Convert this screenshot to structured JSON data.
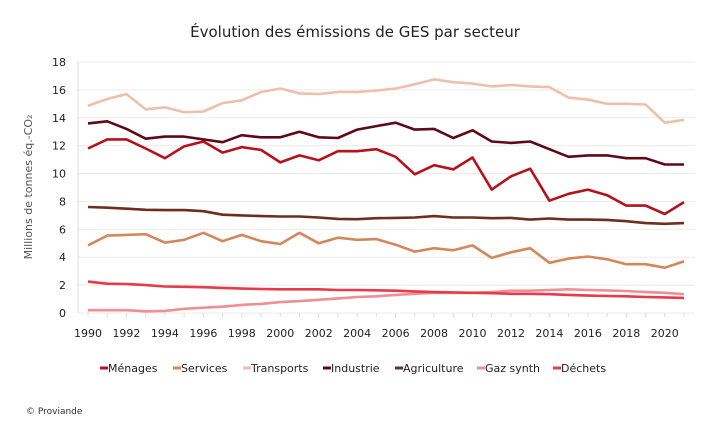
{
  "chart_data": {
    "type": "line",
    "title": "Évolution des émissions de GES par secteur",
    "ylabel": "Millions de tonnes éq.-CO₂",
    "xlabel": "",
    "ylim": [
      0,
      18
    ],
    "yticks": [
      0,
      2,
      4,
      6,
      8,
      10,
      12,
      14,
      16,
      18
    ],
    "xticks": [
      1990,
      1992,
      1994,
      1996,
      1998,
      2000,
      2002,
      2004,
      2006,
      2008,
      2010,
      2012,
      2014,
      2016,
      2018,
      2020
    ],
    "grid": true,
    "legend_position": "bottom",
    "x": [
      1990,
      1991,
      1992,
      1993,
      1994,
      1995,
      1996,
      1997,
      1998,
      1999,
      2000,
      2001,
      2002,
      2003,
      2004,
      2005,
      2006,
      2007,
      2008,
      2009,
      2010,
      2011,
      2012,
      2013,
      2014,
      2015,
      2016,
      2017,
      2018,
      2019,
      2020,
      2021
    ],
    "series": [
      {
        "name": "Ménages",
        "color": "#b5121b",
        "values": [
          11.8,
          12.45,
          12.45,
          11.8,
          11.1,
          11.95,
          12.3,
          11.5,
          11.9,
          11.7,
          10.8,
          11.3,
          10.95,
          11.6,
          11.6,
          11.75,
          11.2,
          9.95,
          10.6,
          10.3,
          11.15,
          8.85,
          9.8,
          10.35,
          8.05,
          8.55,
          8.85,
          8.45,
          7.7,
          7.7,
          7.1,
          7.95
        ]
      },
      {
        "name": "Services",
        "color": "#d4875a",
        "values": [
          4.85,
          5.55,
          5.6,
          5.65,
          5.05,
          5.25,
          5.75,
          5.15,
          5.6,
          5.15,
          4.95,
          5.75,
          5.0,
          5.4,
          5.25,
          5.3,
          4.9,
          4.4,
          4.65,
          4.5,
          4.85,
          3.95,
          4.35,
          4.65,
          3.6,
          3.9,
          4.05,
          3.85,
          3.5,
          3.5,
          3.25,
          3.7
        ]
      },
      {
        "name": "Transports",
        "color": "#eec0ac",
        "values": [
          14.85,
          15.35,
          15.7,
          14.6,
          14.75,
          14.4,
          14.45,
          15.05,
          15.25,
          15.85,
          16.1,
          15.75,
          15.7,
          15.85,
          15.85,
          15.95,
          16.1,
          16.4,
          16.75,
          16.55,
          16.45,
          16.25,
          16.35,
          16.25,
          16.2,
          15.45,
          15.3,
          15.0,
          15.0,
          14.95,
          13.65,
          13.85
        ]
      },
      {
        "name": "Industrie",
        "color": "#5e0a16",
        "values": [
          13.6,
          13.75,
          13.2,
          12.5,
          12.65,
          12.65,
          12.45,
          12.25,
          12.75,
          12.6,
          12.6,
          13.0,
          12.6,
          12.55,
          13.15,
          13.4,
          13.65,
          13.15,
          13.2,
          12.55,
          13.1,
          12.3,
          12.2,
          12.3,
          11.75,
          11.2,
          11.3,
          11.3,
          11.1,
          11.1,
          10.65,
          10.65
        ]
      },
      {
        "name": "Agriculture",
        "color": "#6e2e1d",
        "values": [
          7.6,
          7.55,
          7.48,
          7.4,
          7.38,
          7.38,
          7.3,
          7.05,
          7.0,
          6.95,
          6.92,
          6.92,
          6.85,
          6.75,
          6.73,
          6.8,
          6.82,
          6.85,
          6.95,
          6.85,
          6.85,
          6.8,
          6.82,
          6.7,
          6.78,
          6.7,
          6.7,
          6.68,
          6.58,
          6.45,
          6.4,
          6.45
        ]
      },
      {
        "name": "Gaz synth",
        "color": "#ef8e94",
        "values": [
          0.2,
          0.2,
          0.2,
          0.12,
          0.15,
          0.3,
          0.38,
          0.45,
          0.58,
          0.65,
          0.78,
          0.85,
          0.95,
          1.05,
          1.15,
          1.2,
          1.3,
          1.38,
          1.45,
          1.45,
          1.45,
          1.5,
          1.6,
          1.6,
          1.65,
          1.7,
          1.65,
          1.62,
          1.58,
          1.5,
          1.45,
          1.35
        ]
      },
      {
        "name": "Déchets",
        "color": "#e83a48",
        "values": [
          2.25,
          2.1,
          2.08,
          2.0,
          1.9,
          1.88,
          1.85,
          1.8,
          1.75,
          1.72,
          1.7,
          1.7,
          1.7,
          1.65,
          1.65,
          1.63,
          1.6,
          1.55,
          1.5,
          1.48,
          1.45,
          1.42,
          1.38,
          1.38,
          1.35,
          1.3,
          1.25,
          1.22,
          1.2,
          1.15,
          1.12,
          1.08
        ]
      }
    ]
  },
  "footer": {
    "copyright": "© Proviande"
  }
}
